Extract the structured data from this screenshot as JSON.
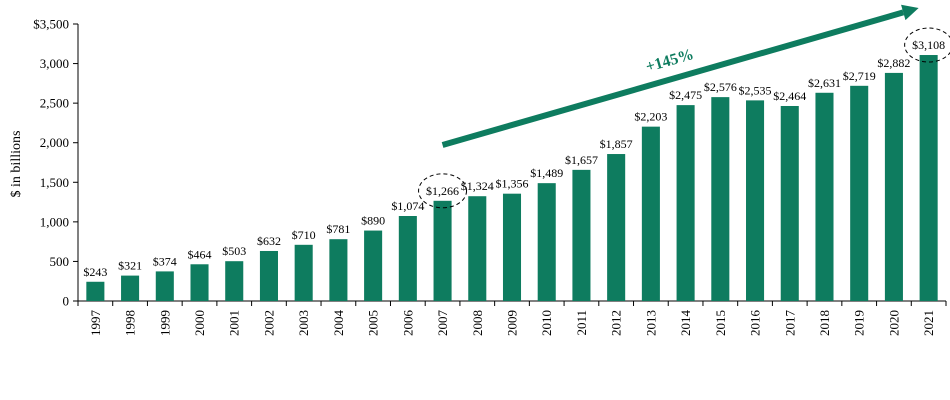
{
  "chart_data": {
    "type": "bar",
    "ylabel": "$ in billions",
    "ylim": [
      0,
      3500
    ],
    "y_ticks": [
      "0",
      "500",
      "1,000",
      "1,500",
      "2,000",
      "2,500",
      "3,000",
      "$3,500"
    ],
    "y_tick_values": [
      0,
      500,
      1000,
      1500,
      2000,
      2500,
      3000,
      3500
    ],
    "categories": [
      "1997",
      "1998",
      "1999",
      "2000",
      "2001",
      "2002",
      "2003",
      "2004",
      "2005",
      "2006",
      "2007",
      "2008",
      "2009",
      "2010",
      "2011",
      "2012",
      "2013",
      "2014",
      "2015",
      "2016",
      "2017",
      "2018",
      "2019",
      "2020",
      "2021"
    ],
    "values": [
      243,
      321,
      374,
      464,
      503,
      632,
      710,
      781,
      890,
      1074,
      1266,
      1324,
      1356,
      1489,
      1657,
      1857,
      2203,
      2475,
      2576,
      2535,
      2464,
      2631,
      2719,
      2882,
      3108
    ],
    "data_labels": [
      "$243",
      "$321",
      "$374",
      "$464",
      "$503",
      "$632",
      "$710",
      "$781",
      "$890",
      "$1,074",
      "$1,266",
      "$1,324",
      "$1,356",
      "$1,489",
      "$1,657",
      "$1,857",
      "$2,203",
      "$2,475",
      "$2,576",
      "$2,535",
      "$2,464",
      "$2,631",
      "$2,719",
      "$2,882",
      "$3,108"
    ],
    "annotation": {
      "text": "+145%"
    },
    "highlighted_categories": [
      "2007",
      "2021"
    ],
    "bar_color": "#0e7c5f",
    "grid": false,
    "legend": "none"
  }
}
